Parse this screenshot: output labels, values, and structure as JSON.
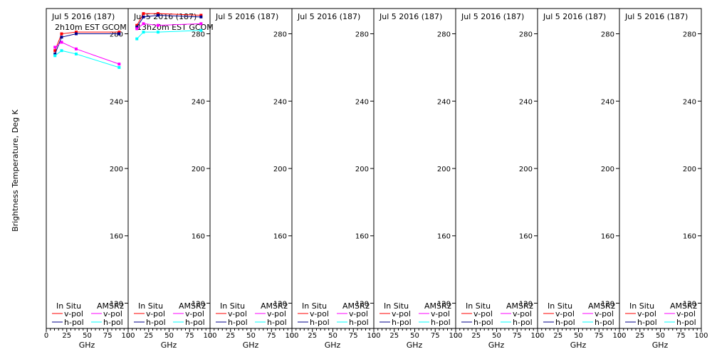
{
  "chart_data": {
    "type": "line",
    "ylabel": "Brightness Temperature, Deg K",
    "xlabel": "GHz",
    "xlim": [
      0,
      100
    ],
    "ylim": [
      105,
      295
    ],
    "yticks": [
      120,
      160,
      200,
      240,
      280
    ],
    "xticks": [
      0,
      25,
      50,
      75,
      100
    ],
    "xtick_labels": [
      "0",
      "25",
      "50",
      "75",
      "100"
    ],
    "legend": {
      "insitu_header": "In Situ",
      "amsr2_header": "AMSR2",
      "vpol": "v-pol",
      "hpol": "h-pol"
    },
    "colors": {
      "insitu_v": "#ff0000",
      "insitu_h": "#00008b",
      "amsr2_v": "#ff00ff",
      "amsr2_h": "#00ffff"
    },
    "panels": [
      {
        "date": "Jul 5 2016 (187)",
        "time": "2h10m EST GCOM",
        "series": [
          {
            "key": "insitu_v",
            "x": [
              10.65,
              18.7,
              36.5,
              89
            ],
            "y": [
              270,
              280,
              281,
              281
            ]
          },
          {
            "key": "insitu_h",
            "x": [
              10.65,
              18.7,
              36.5,
              89
            ],
            "y": [
              268,
              278,
              280,
              280
            ]
          },
          {
            "key": "amsr2_v",
            "x": [
              10.65,
              18.7,
              36.5,
              89
            ],
            "y": [
              272,
              275,
              271,
              262
            ]
          },
          {
            "key": "amsr2_h",
            "x": [
              10.65,
              18.7,
              36.5,
              89
            ],
            "y": [
              267,
              270,
              268,
              260
            ]
          }
        ]
      },
      {
        "date": "Jul 5 2016 (187)",
        "time": "13h20m EST GCOM",
        "series": [
          {
            "key": "insitu_v",
            "x": [
              10.65,
              18.7,
              36.5,
              89
            ],
            "y": [
              285,
              292,
              292,
              291
            ]
          },
          {
            "key": "insitu_h",
            "x": [
              10.65,
              18.7,
              36.5,
              89
            ],
            "y": [
              284,
              290,
              291,
              290
            ]
          },
          {
            "key": "amsr2_v",
            "x": [
              10.65,
              18.7,
              36.5,
              89
            ],
            "y": [
              283,
              286,
              285,
              286
            ]
          },
          {
            "key": "amsr2_h",
            "x": [
              10.65,
              18.7,
              36.5,
              89
            ],
            "y": [
              277,
              281,
              281,
              282
            ]
          }
        ]
      },
      {
        "date": "Jul 5 2016 (187)",
        "time": "",
        "series": []
      },
      {
        "date": "Jul 5 2016 (187)",
        "time": "",
        "series": []
      },
      {
        "date": "Jul 5 2016 (187)",
        "time": "",
        "series": []
      },
      {
        "date": "Jul 5 2016 (187)",
        "time": "",
        "series": []
      },
      {
        "date": "Jul 5 2016 (187)",
        "time": "",
        "series": []
      },
      {
        "date": "Jul 5 2016 (187)",
        "time": "",
        "series": []
      }
    ]
  }
}
